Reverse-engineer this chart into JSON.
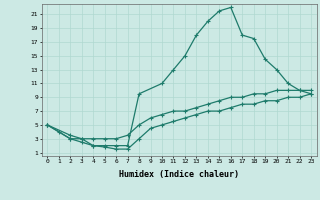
{
  "xlabel": "Humidex (Indice chaleur)",
  "background_color": "#cce9e4",
  "grid_color": "#b0d8d0",
  "line_color": "#1e7b6b",
  "xlim": [
    -0.5,
    23.5
  ],
  "ylim": [
    0.5,
    22.5
  ],
  "xticks": [
    0,
    1,
    2,
    3,
    4,
    5,
    6,
    7,
    8,
    9,
    10,
    11,
    12,
    13,
    14,
    15,
    16,
    17,
    18,
    19,
    20,
    21,
    22,
    23
  ],
  "yticks": [
    1,
    3,
    5,
    7,
    9,
    11,
    13,
    15,
    17,
    19,
    21
  ],
  "line1_x": [
    0,
    1,
    2,
    3,
    4,
    5,
    6,
    7,
    8,
    10,
    11,
    12,
    13,
    14,
    15,
    16,
    17,
    18,
    19,
    20,
    21,
    22,
    23
  ],
  "line1_y": [
    5,
    4,
    3,
    3,
    2,
    2,
    2,
    2,
    9.5,
    11,
    13,
    15,
    18,
    20,
    21.5,
    22,
    18,
    17.5,
    14.5,
    13,
    11,
    10,
    9.5
  ],
  "line2_x": [
    0,
    2,
    3,
    4,
    5,
    6,
    7,
    8,
    9,
    10,
    11,
    12,
    13,
    14,
    15,
    16,
    17,
    18,
    19,
    20,
    21,
    22,
    23
  ],
  "line2_y": [
    5,
    3.5,
    3,
    3,
    3,
    3,
    3.5,
    5,
    6,
    6.5,
    7,
    7,
    7.5,
    8,
    8.5,
    9,
    9,
    9.5,
    9.5,
    10,
    10,
    10,
    10
  ],
  "line3_x": [
    0,
    2,
    3,
    4,
    5,
    6,
    7,
    8,
    9,
    10,
    11,
    12,
    13,
    14,
    15,
    16,
    17,
    18,
    19,
    20,
    21,
    22,
    23
  ],
  "line3_y": [
    5,
    3,
    2.5,
    2,
    1.8,
    1.5,
    1.5,
    3,
    4.5,
    5,
    5.5,
    6,
    6.5,
    7,
    7,
    7.5,
    8,
    8,
    8.5,
    8.5,
    9,
    9,
    9.5
  ]
}
